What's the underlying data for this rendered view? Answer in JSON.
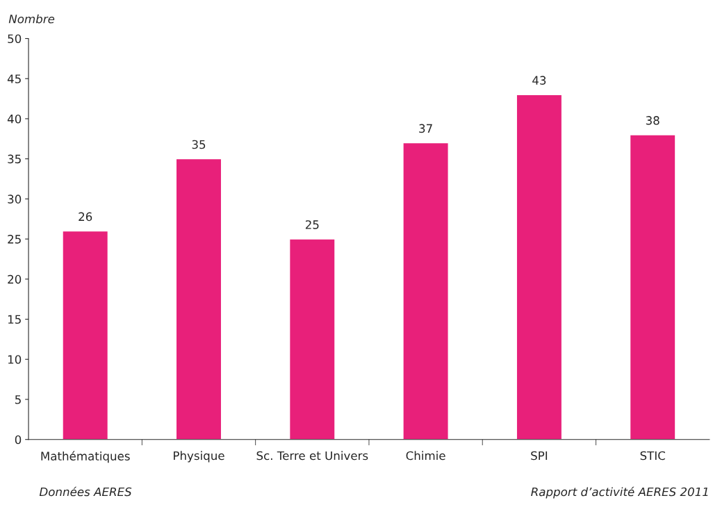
{
  "chart_data": {
    "type": "bar",
    "ylabel": "Nombre",
    "categories": [
      "Mathématiques",
      "Physique",
      "Sc. Terre et Univers",
      "Chimie",
      "SPI",
      "STIC"
    ],
    "values": [
      26,
      35,
      25,
      37,
      43,
      38
    ],
    "color": "#e8207a",
    "ylim": [
      0,
      50
    ],
    "yticks": [
      0,
      5,
      10,
      15,
      20,
      25,
      30,
      35,
      40,
      45,
      50
    ],
    "grid": false,
    "data_labels": true,
    "annotations": [
      "Données AERES",
      "Rapport d’activité AERES 2011"
    ]
  }
}
